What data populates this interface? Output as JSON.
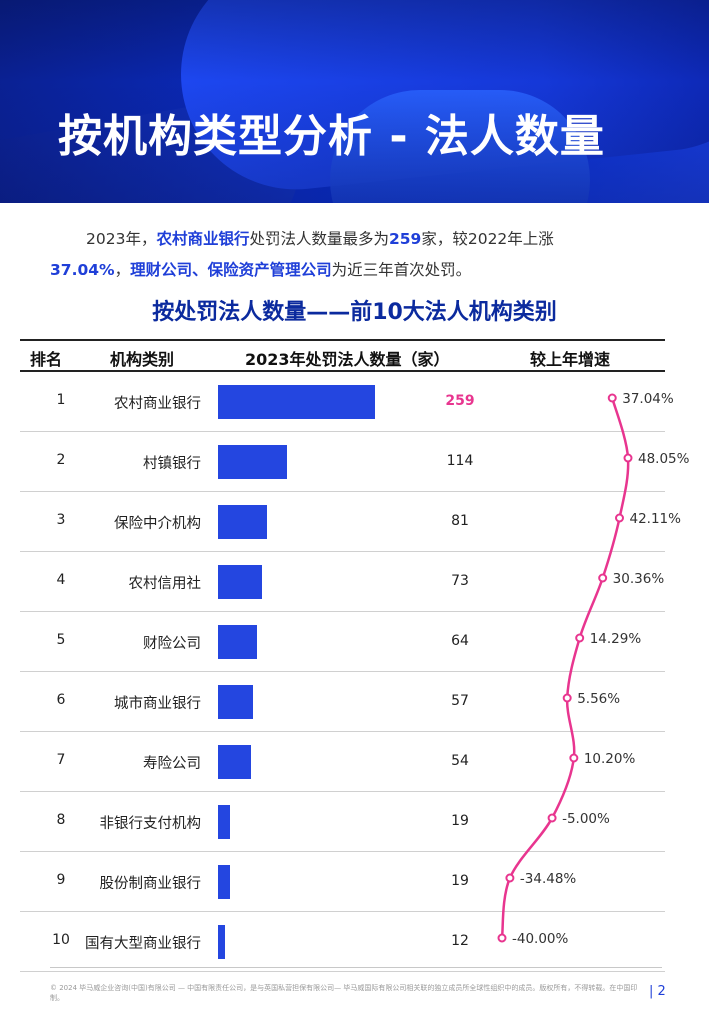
{
  "page": {
    "title": "按机构类型分析 - 法人数量",
    "intro": {
      "p1_before": "2023年，",
      "p1_hl1": "农村商业银行",
      "p1_mid": "处罚法人数量最多为",
      "p1_hl2": "259",
      "p1_after": "家，较2022年上涨",
      "p2_hl1": "37.04%",
      "p2_sep": "，",
      "p2_hl2": "理财公司、保险资产管理公司",
      "p2_after": "为近三年首次处罚。"
    },
    "subtitle": "按处罚法人数量——前10大法人机构类别",
    "footer": "© 2024 毕马威企业咨询(中国)有限公司 — 中国有限责任公司，是与英国私营担保有限公司— 毕马威国际有限公司相关联的独立成员所全球性组织中的成员。版权所有，不得转载。在中国印制。",
    "page_number": "| 2"
  },
  "colors": {
    "bar": "#2446e0",
    "growth_line": "#e8358f",
    "title_blue": "#0b2a9e",
    "highlight": "#1f3fd8"
  },
  "chart_data": {
    "type": "table",
    "columns": [
      "排名",
      "机构类别",
      "2023年处罚法人数量（家）",
      "较上年增速"
    ],
    "rows": [
      {
        "rank": "1",
        "category": "农村商业银行",
        "count": 259,
        "count_label": "259",
        "growth": 37.04,
        "growth_label": "37.04%"
      },
      {
        "rank": "2",
        "category": "村镇银行",
        "count": 114,
        "count_label": "114",
        "growth": 48.05,
        "growth_label": "48.05%"
      },
      {
        "rank": "3",
        "category": "保险中介机构",
        "count": 81,
        "count_label": "81",
        "growth": 42.11,
        "growth_label": "42.11%"
      },
      {
        "rank": "4",
        "category": "农村信用社",
        "count": 73,
        "count_label": "73",
        "growth": 30.36,
        "growth_label": "30.36%"
      },
      {
        "rank": "5",
        "category": "财险公司",
        "count": 64,
        "count_label": "64",
        "growth": 14.29,
        "growth_label": "14.29%"
      },
      {
        "rank": "6",
        "category": "城市商业银行",
        "count": 57,
        "count_label": "57",
        "growth": 5.56,
        "growth_label": "5.56%"
      },
      {
        "rank": "7",
        "category": "寿险公司",
        "count": 54,
        "count_label": "54",
        "growth": 10.2,
        "growth_label": "10.20%"
      },
      {
        "rank": "8",
        "category": "非银行支付机构",
        "count": 19,
        "count_label": "19",
        "growth": -5.0,
        "growth_label": "-5.00%"
      },
      {
        "rank": "9",
        "category": "股份制商业银行",
        "count": 19,
        "count_label": "19",
        "growth": -34.48,
        "growth_label": "-34.48%"
      },
      {
        "rank": "10",
        "category": "国有大型商业银行",
        "count": 12,
        "count_label": "12",
        "growth": -40.0,
        "growth_label": "-40.00%"
      }
    ]
  }
}
